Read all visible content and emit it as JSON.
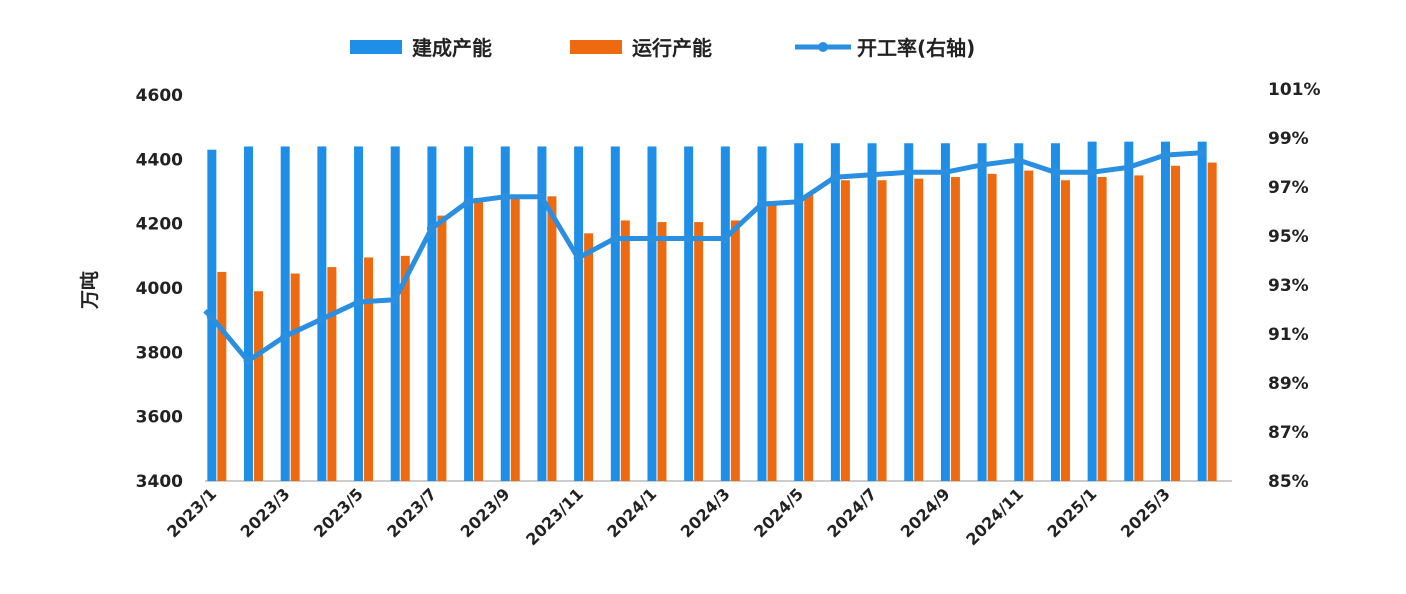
{
  "chart_data": {
    "type": "bar+line",
    "ylabel": "万吨",
    "ylim": [
      3400,
      4600
    ],
    "yticks": [
      "3400",
      "3600",
      "3800",
      "4000",
      "4200",
      "4400",
      "4600"
    ],
    "y2lim": [
      85,
      101
    ],
    "y2ticks": [
      "85%",
      "87%",
      "89%",
      "91%",
      "93%",
      "95%",
      "97%",
      "99%",
      "101%"
    ],
    "categories": [
      "2023/1",
      "2023/2",
      "2023/3",
      "2023/4",
      "2023/5",
      "2023/6",
      "2023/7",
      "2023/8",
      "2023/9",
      "2023/10",
      "2023/11",
      "2023/12",
      "2024/1",
      "2024/2",
      "2024/3",
      "2024/4",
      "2024/5",
      "2024/6",
      "2024/7",
      "2024/8",
      "2024/9",
      "2024/10",
      "2024/11",
      "2024/12",
      "2025/1",
      "2025/2",
      "2025/3",
      "2025/4"
    ],
    "xtick_labels": [
      "2023/1",
      "2023/3",
      "2023/5",
      "2023/7",
      "2023/9",
      "2023/11",
      "2024/1",
      "2024/3",
      "2024/5",
      "2024/7",
      "2024/9",
      "2024/11",
      "2025/1",
      "2025/3"
    ],
    "legend_position": "top",
    "series": [
      {
        "name": "建成产能",
        "type": "bar",
        "axis": "left",
        "color": "#1f8ee6",
        "values": [
          4430,
          4440,
          4440,
          4440,
          4440,
          4440,
          4440,
          4440,
          4440,
          4440,
          4440,
          4440,
          4440,
          4440,
          4440,
          4440,
          4450,
          4450,
          4450,
          4450,
          4450,
          4450,
          4450,
          4450,
          4455,
          4455,
          4455,
          4455
        ]
      },
      {
        "name": "运行产能",
        "type": "bar",
        "axis": "left",
        "color": "#ee6a10",
        "values": [
          4050,
          3990,
          4045,
          4065,
          4095,
          4100,
          4225,
          4280,
          4285,
          4285,
          4170,
          4210,
          4205,
          4205,
          4210,
          4270,
          4290,
          4335,
          4335,
          4340,
          4345,
          4355,
          4365,
          4335,
          4345,
          4350,
          4380,
          4390
        ]
      },
      {
        "name": "开工率(右轴)",
        "type": "line",
        "axis": "right",
        "color": "#2a8fe0",
        "values": [
          91.7,
          89.9,
          90.9,
          91.6,
          92.3,
          92.4,
          95.3,
          96.4,
          96.6,
          96.6,
          94.1,
          94.9,
          94.9,
          94.9,
          94.9,
          96.3,
          96.4,
          97.4,
          97.5,
          97.6,
          97.6,
          97.9,
          98.1,
          97.6,
          97.6,
          97.8,
          98.3,
          98.4
        ]
      }
    ]
  }
}
